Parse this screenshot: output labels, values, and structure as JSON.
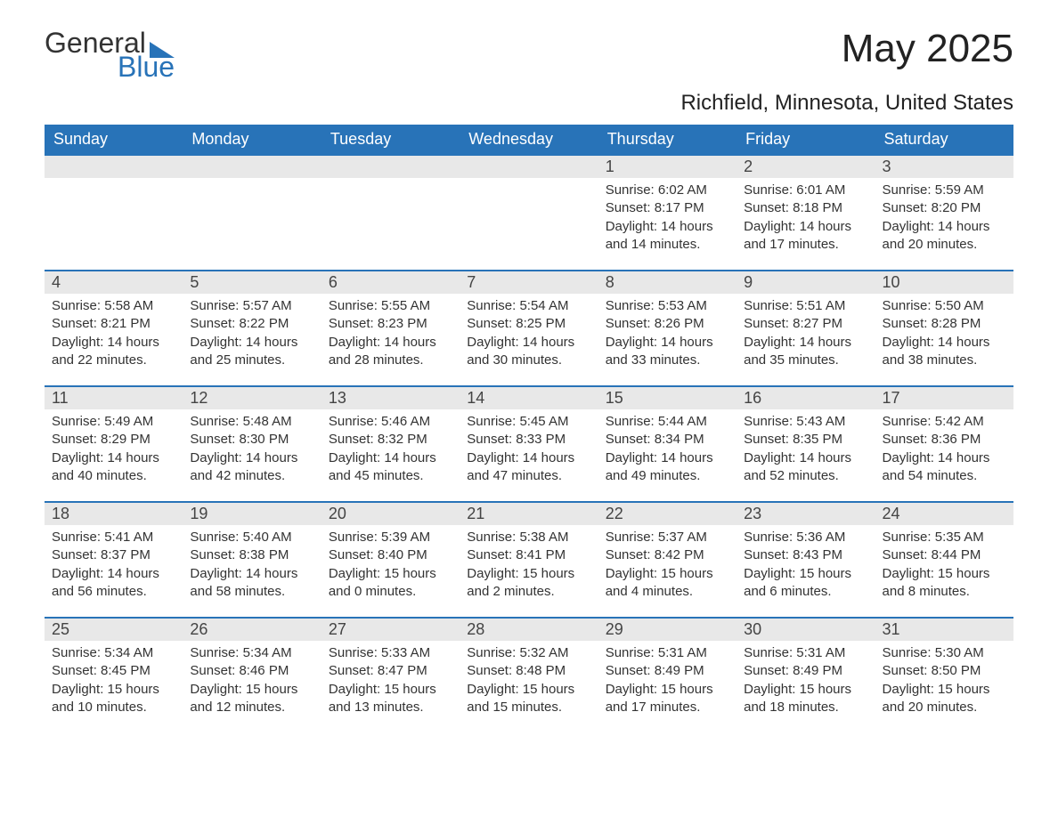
{
  "brand": {
    "part1": "General",
    "part2": "Blue"
  },
  "title": "May 2025",
  "location": "Richfield, Minnesota, United States",
  "colors": {
    "header_bg": "#2873b8",
    "header_text": "#ffffff",
    "daynum_bg": "#e8e8e8",
    "text": "#333333",
    "border": "#2873b8"
  },
  "weekdays": [
    "Sunday",
    "Monday",
    "Tuesday",
    "Wednesday",
    "Thursday",
    "Friday",
    "Saturday"
  ],
  "weeks": [
    [
      {
        "day": "",
        "sunrise": "",
        "sunset": "",
        "daylight": ""
      },
      {
        "day": "",
        "sunrise": "",
        "sunset": "",
        "daylight": ""
      },
      {
        "day": "",
        "sunrise": "",
        "sunset": "",
        "daylight": ""
      },
      {
        "day": "",
        "sunrise": "",
        "sunset": "",
        "daylight": ""
      },
      {
        "day": "1",
        "sunrise": "Sunrise: 6:02 AM",
        "sunset": "Sunset: 8:17 PM",
        "daylight": "Daylight: 14 hours and 14 minutes."
      },
      {
        "day": "2",
        "sunrise": "Sunrise: 6:01 AM",
        "sunset": "Sunset: 8:18 PM",
        "daylight": "Daylight: 14 hours and 17 minutes."
      },
      {
        "day": "3",
        "sunrise": "Sunrise: 5:59 AM",
        "sunset": "Sunset: 8:20 PM",
        "daylight": "Daylight: 14 hours and 20 minutes."
      }
    ],
    [
      {
        "day": "4",
        "sunrise": "Sunrise: 5:58 AM",
        "sunset": "Sunset: 8:21 PM",
        "daylight": "Daylight: 14 hours and 22 minutes."
      },
      {
        "day": "5",
        "sunrise": "Sunrise: 5:57 AM",
        "sunset": "Sunset: 8:22 PM",
        "daylight": "Daylight: 14 hours and 25 minutes."
      },
      {
        "day": "6",
        "sunrise": "Sunrise: 5:55 AM",
        "sunset": "Sunset: 8:23 PM",
        "daylight": "Daylight: 14 hours and 28 minutes."
      },
      {
        "day": "7",
        "sunrise": "Sunrise: 5:54 AM",
        "sunset": "Sunset: 8:25 PM",
        "daylight": "Daylight: 14 hours and 30 minutes."
      },
      {
        "day": "8",
        "sunrise": "Sunrise: 5:53 AM",
        "sunset": "Sunset: 8:26 PM",
        "daylight": "Daylight: 14 hours and 33 minutes."
      },
      {
        "day": "9",
        "sunrise": "Sunrise: 5:51 AM",
        "sunset": "Sunset: 8:27 PM",
        "daylight": "Daylight: 14 hours and 35 minutes."
      },
      {
        "day": "10",
        "sunrise": "Sunrise: 5:50 AM",
        "sunset": "Sunset: 8:28 PM",
        "daylight": "Daylight: 14 hours and 38 minutes."
      }
    ],
    [
      {
        "day": "11",
        "sunrise": "Sunrise: 5:49 AM",
        "sunset": "Sunset: 8:29 PM",
        "daylight": "Daylight: 14 hours and 40 minutes."
      },
      {
        "day": "12",
        "sunrise": "Sunrise: 5:48 AM",
        "sunset": "Sunset: 8:30 PM",
        "daylight": "Daylight: 14 hours and 42 minutes."
      },
      {
        "day": "13",
        "sunrise": "Sunrise: 5:46 AM",
        "sunset": "Sunset: 8:32 PM",
        "daylight": "Daylight: 14 hours and 45 minutes."
      },
      {
        "day": "14",
        "sunrise": "Sunrise: 5:45 AM",
        "sunset": "Sunset: 8:33 PM",
        "daylight": "Daylight: 14 hours and 47 minutes."
      },
      {
        "day": "15",
        "sunrise": "Sunrise: 5:44 AM",
        "sunset": "Sunset: 8:34 PM",
        "daylight": "Daylight: 14 hours and 49 minutes."
      },
      {
        "day": "16",
        "sunrise": "Sunrise: 5:43 AM",
        "sunset": "Sunset: 8:35 PM",
        "daylight": "Daylight: 14 hours and 52 minutes."
      },
      {
        "day": "17",
        "sunrise": "Sunrise: 5:42 AM",
        "sunset": "Sunset: 8:36 PM",
        "daylight": "Daylight: 14 hours and 54 minutes."
      }
    ],
    [
      {
        "day": "18",
        "sunrise": "Sunrise: 5:41 AM",
        "sunset": "Sunset: 8:37 PM",
        "daylight": "Daylight: 14 hours and 56 minutes."
      },
      {
        "day": "19",
        "sunrise": "Sunrise: 5:40 AM",
        "sunset": "Sunset: 8:38 PM",
        "daylight": "Daylight: 14 hours and 58 minutes."
      },
      {
        "day": "20",
        "sunrise": "Sunrise: 5:39 AM",
        "sunset": "Sunset: 8:40 PM",
        "daylight": "Daylight: 15 hours and 0 minutes."
      },
      {
        "day": "21",
        "sunrise": "Sunrise: 5:38 AM",
        "sunset": "Sunset: 8:41 PM",
        "daylight": "Daylight: 15 hours and 2 minutes."
      },
      {
        "day": "22",
        "sunrise": "Sunrise: 5:37 AM",
        "sunset": "Sunset: 8:42 PM",
        "daylight": "Daylight: 15 hours and 4 minutes."
      },
      {
        "day": "23",
        "sunrise": "Sunrise: 5:36 AM",
        "sunset": "Sunset: 8:43 PM",
        "daylight": "Daylight: 15 hours and 6 minutes."
      },
      {
        "day": "24",
        "sunrise": "Sunrise: 5:35 AM",
        "sunset": "Sunset: 8:44 PM",
        "daylight": "Daylight: 15 hours and 8 minutes."
      }
    ],
    [
      {
        "day": "25",
        "sunrise": "Sunrise: 5:34 AM",
        "sunset": "Sunset: 8:45 PM",
        "daylight": "Daylight: 15 hours and 10 minutes."
      },
      {
        "day": "26",
        "sunrise": "Sunrise: 5:34 AM",
        "sunset": "Sunset: 8:46 PM",
        "daylight": "Daylight: 15 hours and 12 minutes."
      },
      {
        "day": "27",
        "sunrise": "Sunrise: 5:33 AM",
        "sunset": "Sunset: 8:47 PM",
        "daylight": "Daylight: 15 hours and 13 minutes."
      },
      {
        "day": "28",
        "sunrise": "Sunrise: 5:32 AM",
        "sunset": "Sunset: 8:48 PM",
        "daylight": "Daylight: 15 hours and 15 minutes."
      },
      {
        "day": "29",
        "sunrise": "Sunrise: 5:31 AM",
        "sunset": "Sunset: 8:49 PM",
        "daylight": "Daylight: 15 hours and 17 minutes."
      },
      {
        "day": "30",
        "sunrise": "Sunrise: 5:31 AM",
        "sunset": "Sunset: 8:49 PM",
        "daylight": "Daylight: 15 hours and 18 minutes."
      },
      {
        "day": "31",
        "sunrise": "Sunrise: 5:30 AM",
        "sunset": "Sunset: 8:50 PM",
        "daylight": "Daylight: 15 hours and 20 minutes."
      }
    ]
  ]
}
